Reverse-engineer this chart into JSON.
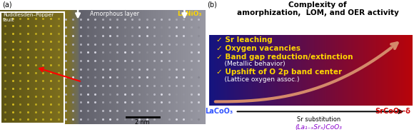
{
  "title_b": "Complexity of\namorphization,  LOM, and OER activity",
  "label_a": "(a)",
  "label_b": "(b)",
  "bullet_items": [
    "✓ Sr leaching",
    "✓ Oxygen vacancies",
    "✓ Band gap reduction/extinction",
    "    (Metallic behavior)",
    "✓ Upshift of O 2p band center",
    "    (Lattice oxygen assoc.)"
  ],
  "bullet_colors": [
    "#FFD700",
    "#FFD700",
    "#FFD700",
    "#FFFFFF",
    "#FFD700",
    "#FFFFFF"
  ],
  "bullet_bold": [
    true,
    true,
    true,
    false,
    true,
    false
  ],
  "bullet_sizes": [
    7.5,
    7.5,
    7.5,
    6.5,
    7.5,
    6.5
  ],
  "left_label": "LaCoO₃",
  "left_color": "#3355FF",
  "right_label": "SrCoO₃–δ",
  "right_color": "#CC0000",
  "arrow_label": "Sr substitution",
  "formula_label": "(La₁₋ₓSrₓ)CoO₃",
  "formula_color": "#8800CC",
  "ruddlesden_label": "Ruddlesden–Popper\nfault",
  "amorphous_label": "Amorphous layer",
  "lanio3_label": "LaNiO₃",
  "scalebar_label": "2 nm",
  "panel_split": 0.495
}
